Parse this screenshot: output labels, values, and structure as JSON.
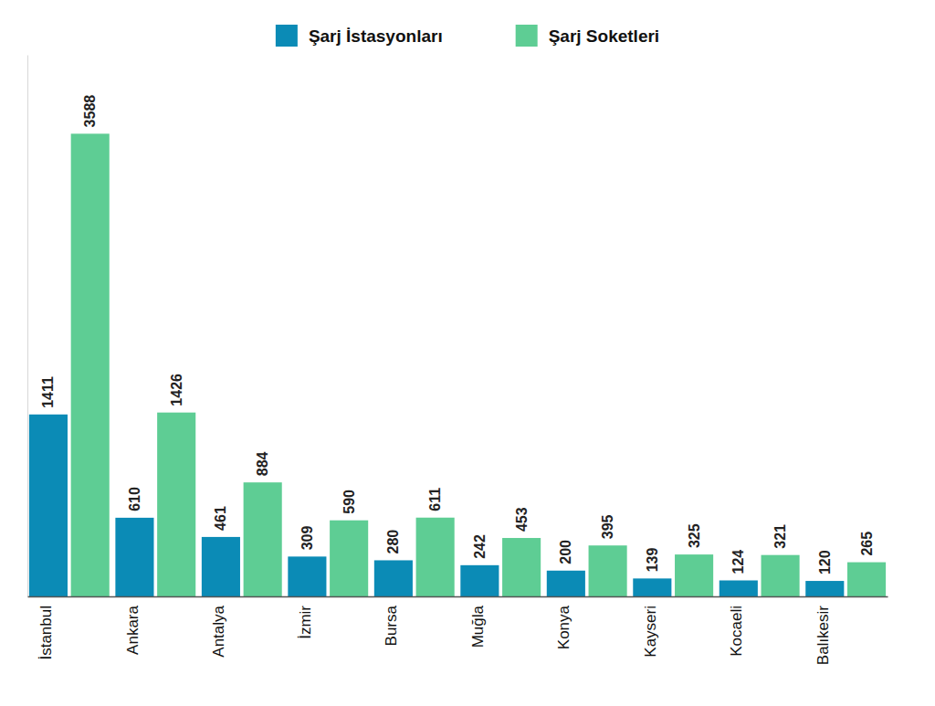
{
  "chart_data": {
    "type": "bar",
    "categories": [
      "İstanbul",
      "Ankara",
      "Antalya",
      "İzmir",
      "Bursa",
      "Muğla",
      "Konya",
      "Kayseri",
      "Kocaeli",
      "Balıkesir"
    ],
    "series": [
      {
        "name": "Şarj İstasyonları",
        "color": "#0b8bb6",
        "values": [
          1411,
          610,
          461,
          309,
          280,
          242,
          200,
          139,
          124,
          120
        ]
      },
      {
        "name": "Şarj Soketleri",
        "color": "#5ecd94",
        "values": [
          3588,
          1426,
          884,
          590,
          611,
          453,
          395,
          325,
          321,
          265
        ]
      }
    ],
    "ylim": [
      0,
      4200
    ],
    "data_labels": true,
    "tick_labels": "x",
    "grid": false,
    "legend": "top"
  }
}
